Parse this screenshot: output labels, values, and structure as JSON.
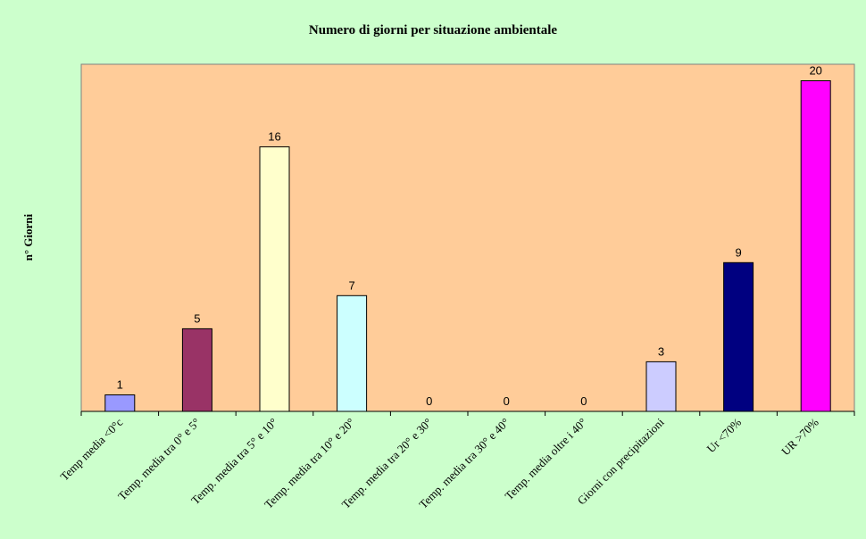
{
  "chart_data": {
    "type": "bar",
    "title": "Numero di giorni per situazione ambientale",
    "xlabel": "",
    "ylabel": "n° Giorni",
    "ylim": [
      0,
      21
    ],
    "grid": false,
    "legend": "none",
    "categories": [
      "Temp media <0°c",
      "Temp. media tra 0° e 5°",
      "Temp. media tra 5° e 10°",
      "Temp. media tra 10° e 20°",
      "Temp. media tra 20° e 30°",
      "Temp. media tra 30° e 40°",
      "Temp. media oltre i 40°",
      "Giorni con precipitazioni",
      "Ur <70%",
      "UR >70%"
    ],
    "values": [
      1,
      5,
      16,
      7,
      0,
      0,
      0,
      3,
      9,
      20
    ],
    "colors": [
      "#9999ff",
      "#993366",
      "#ffffcc",
      "#ccffff",
      "#660066",
      "#ff8080",
      "#0066cc",
      "#ccccff",
      "#000080",
      "#ff00ff"
    ],
    "background": "#ccffcc",
    "plot_background": "#ffcc99"
  }
}
